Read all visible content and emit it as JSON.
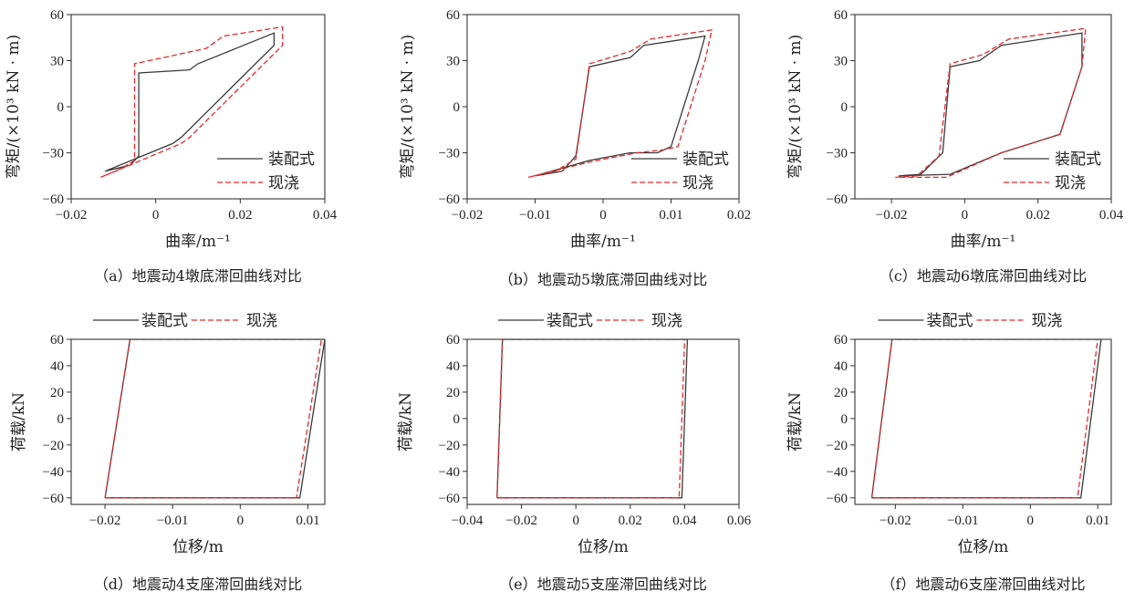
{
  "legend_a": "装配式",
  "legend_b": "现浇",
  "colors": {
    "series_a": "#3a3a3a",
    "series_b": "#e8272b"
  },
  "chart_data": [
    {
      "type": "line",
      "caption": "（a）地震动4墩底滞回曲线对比",
      "xlabel": "曲率/m⁻¹",
      "ylabel": "弯矩/(×10³ kN · m)",
      "xlim": [
        -0.02,
        0.04
      ],
      "ylim": [
        -60,
        60
      ],
      "xticks": [
        -0.02,
        0,
        0.02,
        0.04
      ],
      "xtick_labels": [
        "−0.02",
        "0",
        "0.02",
        "0.04"
      ],
      "yticks": [
        -60,
        -30,
        0,
        30,
        60
      ],
      "ytick_labels": [
        "−60",
        "−30",
        "0",
        "30",
        "60"
      ],
      "legend_position": "bottom-right",
      "series": [
        {
          "name": "装配式",
          "x": [
            -0.012,
            -0.006,
            -0.004,
            -0.004,
            0.008,
            0.01,
            0.028,
            0.028,
            0.006,
            0.004,
            -0.012
          ],
          "y": [
            -42,
            -38,
            -32,
            22,
            24,
            28,
            48,
            40,
            -20,
            -24,
            -42
          ]
        },
        {
          "name": "现浇",
          "x": [
            -0.013,
            -0.008,
            -0.005,
            -0.005,
            0.012,
            0.016,
            0.03,
            0.03,
            0.008,
            0.006,
            -0.013
          ],
          "y": [
            -46,
            -40,
            -35,
            28,
            38,
            46,
            52,
            40,
            -20,
            -24,
            -46
          ]
        }
      ]
    },
    {
      "type": "line",
      "caption": "（b）地震动5墩底滞回曲线对比",
      "xlabel": "曲率/m⁻¹",
      "ylabel": "弯矩/(×10³ kN · m)",
      "xlim": [
        -0.02,
        0.02
      ],
      "ylim": [
        -60,
        60
      ],
      "xticks": [
        -0.02,
        -0.01,
        0,
        0.01,
        0.02
      ],
      "xtick_labels": [
        "−0.02",
        "−0.01",
        "0",
        "0.01",
        "0.02"
      ],
      "yticks": [
        -60,
        -30,
        0,
        30,
        60
      ],
      "ytick_labels": [
        "−60",
        "−30",
        "0",
        "30",
        "60"
      ],
      "legend_position": "bottom-right",
      "series": [
        {
          "name": "装配式",
          "x": [
            -0.01,
            -0.006,
            -0.004,
            -0.002,
            0.004,
            0.006,
            0.015,
            0.014,
            0.01,
            0.008,
            0.004,
            -0.002,
            -0.01
          ],
          "y": [
            -45,
            -42,
            -32,
            26,
            32,
            40,
            46,
            30,
            -26,
            -30,
            -30,
            -35,
            -45
          ]
        },
        {
          "name": "现浇",
          "x": [
            -0.011,
            -0.007,
            -0.004,
            -0.002,
            0.004,
            0.007,
            0.016,
            0.015,
            0.011,
            0.009,
            0.005,
            -0.002,
            -0.011
          ],
          "y": [
            -46,
            -42,
            -34,
            28,
            36,
            44,
            50,
            30,
            -26,
            -28,
            -30,
            -36,
            -46
          ]
        }
      ]
    },
    {
      "type": "line",
      "caption": "（c）地震动6墩底滞回曲线对比",
      "xlabel": "曲率/m⁻¹",
      "ylabel": "弯矩/(×10³ kN · m)",
      "xlim": [
        -0.03,
        0.04
      ],
      "ylim": [
        -60,
        60
      ],
      "xticks": [
        -0.02,
        0,
        0.02,
        0.04
      ],
      "xtick_labels": [
        "−0.02",
        "0",
        "0.02",
        "0.04"
      ],
      "yticks": [
        -60,
        -30,
        0,
        30,
        60
      ],
      "ytick_labels": [
        "−60",
        "−30",
        "0",
        "30",
        "60"
      ],
      "legend_position": "bottom-right",
      "series": [
        {
          "name": "装配式",
          "x": [
            -0.018,
            -0.012,
            -0.006,
            -0.004,
            0.004,
            0.01,
            0.032,
            0.032,
            0.026,
            0.01,
            -0.004,
            -0.018
          ],
          "y": [
            -45,
            -44,
            -30,
            26,
            30,
            40,
            48,
            26,
            -18,
            -30,
            -44,
            -45
          ]
        },
        {
          "name": "现浇",
          "x": [
            -0.019,
            -0.013,
            -0.007,
            -0.004,
            0.005,
            0.012,
            0.033,
            0.032,
            0.026,
            0.01,
            -0.005,
            -0.019
          ],
          "y": [
            -46,
            -45,
            -32,
            28,
            34,
            44,
            51,
            26,
            -18,
            -30,
            -46,
            -46
          ]
        }
      ]
    },
    {
      "type": "line",
      "caption": "（d）地震动4支座滞回曲线对比",
      "xlabel": "位移/m",
      "ylabel": "荷载/kN",
      "xlim": [
        -0.025,
        0.0125
      ],
      "ylim": [
        -65,
        60
      ],
      "xticks": [
        -0.02,
        -0.01,
        0,
        0.01
      ],
      "xtick_labels": [
        "−0.02",
        "−0.01",
        "0",
        "0.01"
      ],
      "yticks": [
        -60,
        -40,
        -20,
        0,
        20,
        40,
        60
      ],
      "ytick_labels": [
        "−60",
        "−40",
        "−20",
        "0",
        "20",
        "40",
        "60"
      ],
      "legend_position": "top",
      "series": [
        {
          "name": "装配式",
          "x": [
            -0.02,
            -0.0163,
            0.0125,
            0.0088,
            -0.02
          ],
          "y": [
            -60,
            60,
            60,
            -60,
            -60
          ]
        },
        {
          "name": "现浇",
          "x": [
            -0.02,
            -0.0163,
            0.012,
            0.0083,
            -0.02
          ],
          "y": [
            -60,
            60,
            60,
            -60,
            -60
          ]
        }
      ]
    },
    {
      "type": "line",
      "caption": "（e）地震动5支座滞回曲线对比",
      "xlabel": "位移/m",
      "ylabel": "荷载/kN",
      "xlim": [
        -0.04,
        0.06
      ],
      "ylim": [
        -65,
        60
      ],
      "xticks": [
        -0.04,
        -0.02,
        0,
        0.02,
        0.04,
        0.06
      ],
      "xtick_labels": [
        "−0.04",
        "−0.02",
        "0",
        "0.02",
        "0.04",
        "0.06"
      ],
      "yticks": [
        -60,
        -40,
        -20,
        0,
        20,
        40,
        60
      ],
      "ytick_labels": [
        "−60",
        "−40",
        "−20",
        "0",
        "20",
        "40",
        "60"
      ],
      "legend_position": "top",
      "series": [
        {
          "name": "装配式",
          "x": [
            -0.029,
            -0.027,
            0.041,
            0.039,
            -0.029
          ],
          "y": [
            -60,
            60,
            60,
            -60,
            -60
          ]
        },
        {
          "name": "现浇",
          "x": [
            -0.029,
            -0.027,
            0.04,
            0.038,
            -0.029
          ],
          "y": [
            -60,
            60,
            60,
            -60,
            -60
          ]
        }
      ]
    },
    {
      "type": "line",
      "caption": "（f）地震动6支座滞回曲线对比",
      "xlabel": "位移/m",
      "ylabel": "荷载/kN",
      "xlim": [
        -0.026,
        0.012
      ],
      "ylim": [
        -65,
        60
      ],
      "xticks": [
        -0.02,
        -0.01,
        0,
        0.01
      ],
      "xtick_labels": [
        "−0.02",
        "−0.01",
        "0",
        "0.01"
      ],
      "yticks": [
        -60,
        -40,
        -20,
        0,
        20,
        40,
        60
      ],
      "ytick_labels": [
        "−60",
        "−40",
        "−20",
        "0",
        "20",
        "40",
        "60"
      ],
      "legend_position": "top",
      "series": [
        {
          "name": "装配式",
          "x": [
            -0.0235,
            -0.0205,
            0.0105,
            0.0075,
            -0.0235
          ],
          "y": [
            -60,
            60,
            60,
            -60,
            -60
          ]
        },
        {
          "name": "现浇",
          "x": [
            -0.0235,
            -0.0205,
            0.01,
            0.007,
            -0.0235
          ],
          "y": [
            -60,
            60,
            60,
            -60,
            -60
          ]
        }
      ]
    }
  ]
}
